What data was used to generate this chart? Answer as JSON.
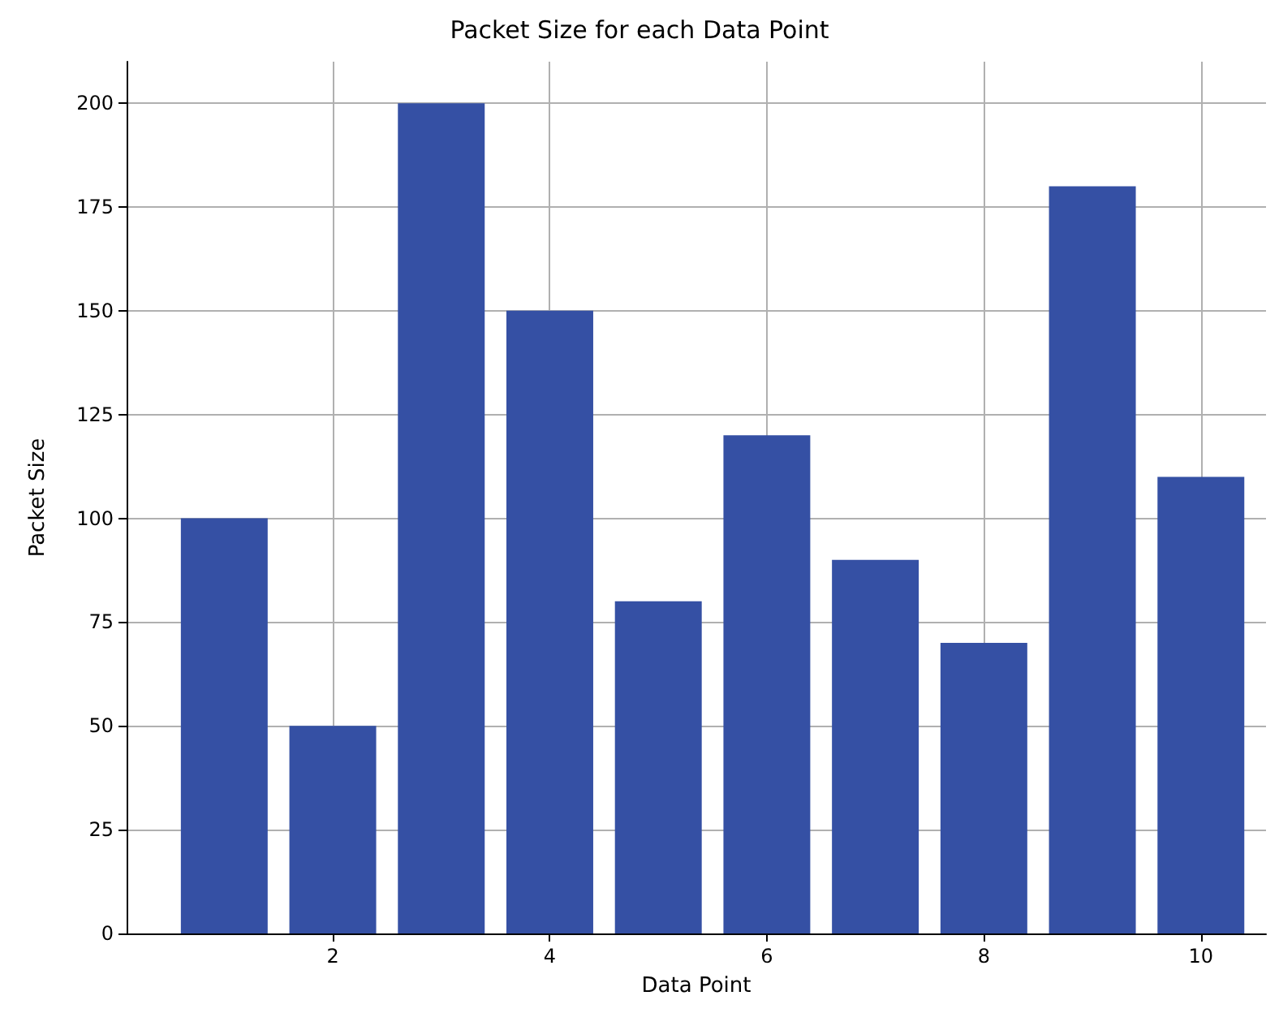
{
  "chart_data": {
    "type": "bar",
    "title": "Packet Size for each Data Point",
    "xlabel": "Data Point",
    "ylabel": "Packet Size",
    "x": [
      1,
      2,
      3,
      4,
      5,
      6,
      7,
      8,
      9,
      10
    ],
    "values": [
      100,
      50,
      200,
      150,
      80,
      120,
      90,
      70,
      180,
      110
    ],
    "color": "#3550a4",
    "xlim": [
      0.1,
      10.6
    ],
    "xticks": [
      2,
      4,
      6,
      8,
      10
    ],
    "ylim": [
      0,
      210
    ],
    "yticks": [
      0,
      25,
      50,
      75,
      100,
      125,
      150,
      175,
      200
    ],
    "grid": true
  }
}
